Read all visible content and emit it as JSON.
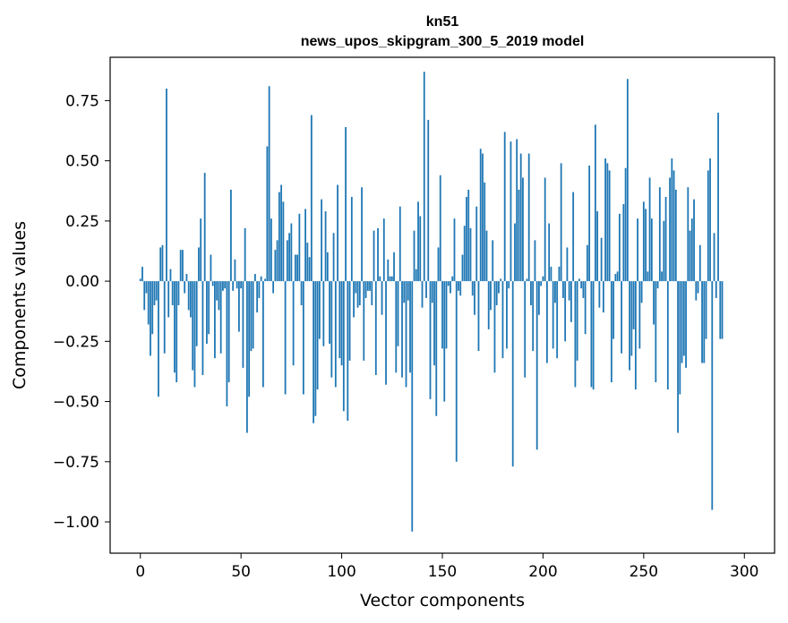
{
  "chart_data": {
    "type": "bar",
    "title": "kn51",
    "subtitle": "news_upos_skipgram_300_5_2019 model",
    "xlabel": "Vector components",
    "ylabel": "Components values",
    "xlim": [
      -15,
      315
    ],
    "ylim": [
      -1.13,
      0.93
    ],
    "grid": false,
    "color": "#1f77b4",
    "x_ticks": [
      {
        "value": 0,
        "label": "0"
      },
      {
        "value": 50,
        "label": "50"
      },
      {
        "value": 100,
        "label": "100"
      },
      {
        "value": 150,
        "label": "150"
      },
      {
        "value": 200,
        "label": "200"
      },
      {
        "value": 250,
        "label": "250"
      },
      {
        "value": 300,
        "label": "300"
      }
    ],
    "y_ticks": [
      {
        "value": 0.75,
        "label": "0.75"
      },
      {
        "value": 0.5,
        "label": "0.50"
      },
      {
        "value": 0.25,
        "label": "0.25"
      },
      {
        "value": 0.0,
        "label": "0.00"
      },
      {
        "value": -0.25,
        "label": "−0.25"
      },
      {
        "value": -0.5,
        "label": "−0.50"
      },
      {
        "value": -0.75,
        "label": "−0.75"
      },
      {
        "value": -1.0,
        "label": "−1.00"
      }
    ],
    "values": [
      0.01,
      0.06,
      -0.12,
      -0.05,
      -0.18,
      -0.31,
      -0.22,
      -0.1,
      -0.08,
      -0.48,
      0.14,
      0.15,
      -0.3,
      0.8,
      -0.15,
      0.05,
      -0.1,
      -0.38,
      -0.42,
      -0.1,
      0.13,
      0.13,
      -0.05,
      0.03,
      -0.12,
      -0.15,
      -0.37,
      -0.44,
      -0.27,
      0.14,
      0.26,
      -0.39,
      0.45,
      -0.26,
      -0.22,
      0.11,
      -0.02,
      -0.32,
      -0.08,
      -0.12,
      -0.3,
      -0.04,
      -0.03,
      -0.52,
      -0.42,
      0.38,
      -0.04,
      0.09,
      -0.03,
      -0.21,
      -0.03,
      -0.36,
      0.22,
      -0.63,
      -0.48,
      -0.29,
      -0.28,
      0.03,
      -0.13,
      -0.07,
      0.02,
      -0.44,
      0.01,
      0.56,
      0.81,
      0.26,
      -0.05,
      0.13,
      0.17,
      0.37,
      0.4,
      0.33,
      -0.47,
      0.17,
      0.2,
      0.24,
      -0.35,
      0.11,
      0.11,
      0.28,
      -0.1,
      -0.47,
      0.3,
      0.16,
      0.1,
      0.69,
      -0.59,
      -0.56,
      -0.45,
      -0.24,
      0.34,
      -0.27,
      0.29,
      0.12,
      -0.26,
      -0.4,
      0.2,
      -0.44,
      0.4,
      -0.32,
      -0.35,
      -0.54,
      0.64,
      -0.58,
      -0.33,
      0.35,
      -0.15,
      -0.05,
      -0.11,
      -0.1,
      0.39,
      -0.33,
      -0.07,
      -0.04,
      -0.04,
      -0.1,
      0.21,
      -0.39,
      0.22,
      0.02,
      -0.14,
      0.26,
      -0.43,
      0.09,
      0.02,
      0.02,
      0.12,
      -0.38,
      -0.27,
      0.31,
      -0.4,
      -0.09,
      -0.44,
      -0.08,
      -0.38,
      -1.04,
      0.21,
      0.05,
      0.33,
      0.27,
      -0.11,
      0.87,
      -0.07,
      0.67,
      -0.49,
      -0.09,
      -0.35,
      -0.56,
      0.14,
      0.44,
      -0.28,
      -0.5,
      -0.28,
      -0.02,
      -0.05,
      0.02,
      0.26,
      -0.75,
      -0.04,
      -0.06,
      0.11,
      0.23,
      0.35,
      0.38,
      0.22,
      -0.06,
      -0.14,
      0.31,
      -0.29,
      0.55,
      0.53,
      0.41,
      0.21,
      -0.2,
      -0.12,
      0.17,
      -0.38,
      -0.1,
      -0.05,
      0.01,
      -0.32,
      0.62,
      -0.28,
      -0.03,
      0.58,
      -0.77,
      0.24,
      0.59,
      0.38,
      0.53,
      0.43,
      -0.4,
      0.01,
      0.53,
      -0.1,
      -0.29,
      0.17,
      -0.7,
      -0.14,
      -0.02,
      0.02,
      0.43,
      -0.34,
      0.24,
      0.06,
      -0.28,
      -0.09,
      -0.32,
      0.06,
      0.49,
      -0.07,
      -0.25,
      0.14,
      -0.08,
      -0.17,
      0.37,
      -0.44,
      -0.33,
      0.01,
      -0.03,
      -0.07,
      -0.22,
      0.15,
      0.48,
      -0.44,
      -0.45,
      0.65,
      0.29,
      -0.11,
      0.18,
      -0.13,
      0.51,
      0.49,
      0.46,
      -0.42,
      -0.24,
      0.03,
      0.04,
      0.28,
      -0.3,
      0.32,
      0.47,
      0.84,
      -0.37,
      -0.31,
      -0.2,
      -0.45,
      0.26,
      -0.28,
      -0.09,
      0.33,
      0.3,
      0.04,
      0.43,
      0.26,
      -0.18,
      -0.42,
      -0.03,
      0.39,
      0.04,
      0.25,
      0.35,
      -0.45,
      0.43,
      0.51,
      0.46,
      0.38,
      -0.63,
      -0.47,
      -0.34,
      -0.31,
      -0.36,
      0.39,
      0.21,
      0.26,
      0.34,
      -0.08,
      -0.05,
      0.15,
      -0.34,
      -0.34,
      -0.24,
      0.46,
      0.51,
      -0.95,
      0.2,
      -0.07,
      0.7,
      -0.24,
      -0.24
    ]
  }
}
